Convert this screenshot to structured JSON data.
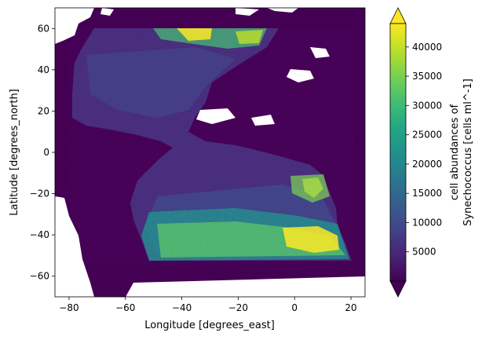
{
  "chart_data": {
    "type": "heatmap",
    "title": "",
    "xlabel": "Longitude [degrees_east]",
    "ylabel": "Latitude [degrees_north]",
    "xlim": [
      -85,
      25
    ],
    "ylim": [
      -70,
      70
    ],
    "x_ticks": [
      -80,
      -60,
      -40,
      -20,
      0,
      20
    ],
    "y_ticks": [
      -60,
      -40,
      -20,
      0,
      20,
      40,
      60
    ],
    "x_tick_labels": [
      "−80",
      "−60",
      "−40",
      "−20",
      "0",
      "20"
    ],
    "y_tick_labels": [
      "−60",
      "−40",
      "−20",
      "0",
      "20",
      "40",
      "60"
    ],
    "colormap": "viridis",
    "colorbar": {
      "label_line1": "cell abundances of",
      "label_line2": "Synechococcus [cells ml^-1]",
      "min": 0,
      "max": 44000,
      "extend": "both",
      "ticks": [
        5000,
        10000,
        15000,
        20000,
        25000,
        30000,
        35000,
        40000
      ],
      "tick_labels": [
        "5000",
        "10000",
        "15000",
        "20000",
        "25000",
        "30000",
        "35000",
        "40000"
      ]
    },
    "colors": {
      "land_fill": "#440154",
      "no_data": "#ffffff",
      "ocean_typical": "#482475",
      "high": "#fde725",
      "mid": "#2a9d8f"
    }
  }
}
